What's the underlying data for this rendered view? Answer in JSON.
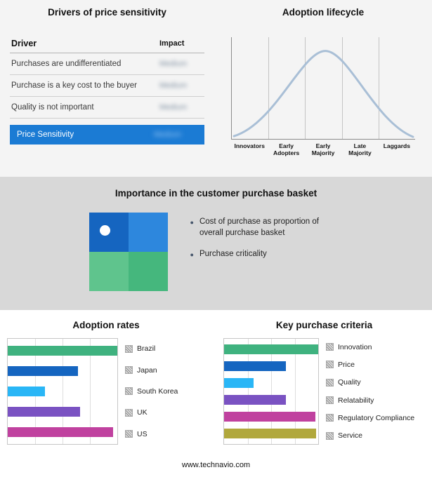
{
  "icons": {
    "bullet": "●"
  },
  "drivers_table": {
    "title": "Drivers of price sensitivity",
    "columns": [
      "Driver",
      "Impact"
    ],
    "rows": [
      {
        "driver": "Purchases are undifferentiated",
        "impact": "Medium"
      },
      {
        "driver": "Purchase is a key cost to the buyer",
        "impact": "Medium"
      },
      {
        "driver": "Quality is not important",
        "impact": "Medium"
      }
    ],
    "highlight_row": {
      "driver": "Price Sensitivity",
      "impact": "Medium"
    },
    "highlight_color": "#1b7bd4"
  },
  "basket": {
    "title": "Importance in the customer purchase basket",
    "bullets": [
      "Cost of purchase as proportion of overall purchase basket",
      "Purchase criticality"
    ],
    "quadrant_colors": [
      "#1565c0",
      "#2d87dd",
      "#5fc48d",
      "#45b77d"
    ]
  },
  "footer": {
    "url": "www.technavio.com"
  },
  "chart_data": [
    {
      "id": "adoption_lifecycle",
      "type": "line",
      "title": "Adoption lifecycle",
      "curve": "bell",
      "x_stages": [
        "Innovators",
        "Early Adopters",
        "Early Majority",
        "Late Majority",
        "Laggards"
      ],
      "line_color": "#a9bfd6",
      "grid": "vertical"
    },
    {
      "id": "adoption_rates",
      "type": "bar",
      "orientation": "horizontal",
      "title": "Adoption rates",
      "categories": [
        "Brazil",
        "Japan",
        "South Korea",
        "UK",
        "US"
      ],
      "values": [
        100,
        64,
        34,
        66,
        96
      ],
      "colors": [
        "#3fb27f",
        "#1565c0",
        "#29b6f6",
        "#7a52c2",
        "#c0419f"
      ],
      "xlim": [
        0,
        100
      ],
      "legend_position": "right"
    },
    {
      "id": "key_purchase_criteria",
      "type": "bar",
      "orientation": "horizontal",
      "title": "Key purchase criteria",
      "categories": [
        "Innovation",
        "Price",
        "Quality",
        "Relatability",
        "Regulatory Compliance",
        "Service"
      ],
      "values": [
        100,
        66,
        31,
        66,
        97,
        98
      ],
      "colors": [
        "#3fb27f",
        "#1565c0",
        "#29b6f6",
        "#7a52c2",
        "#c0419f",
        "#b1a83c"
      ],
      "xlim": [
        0,
        100
      ],
      "legend_position": "right"
    }
  ]
}
